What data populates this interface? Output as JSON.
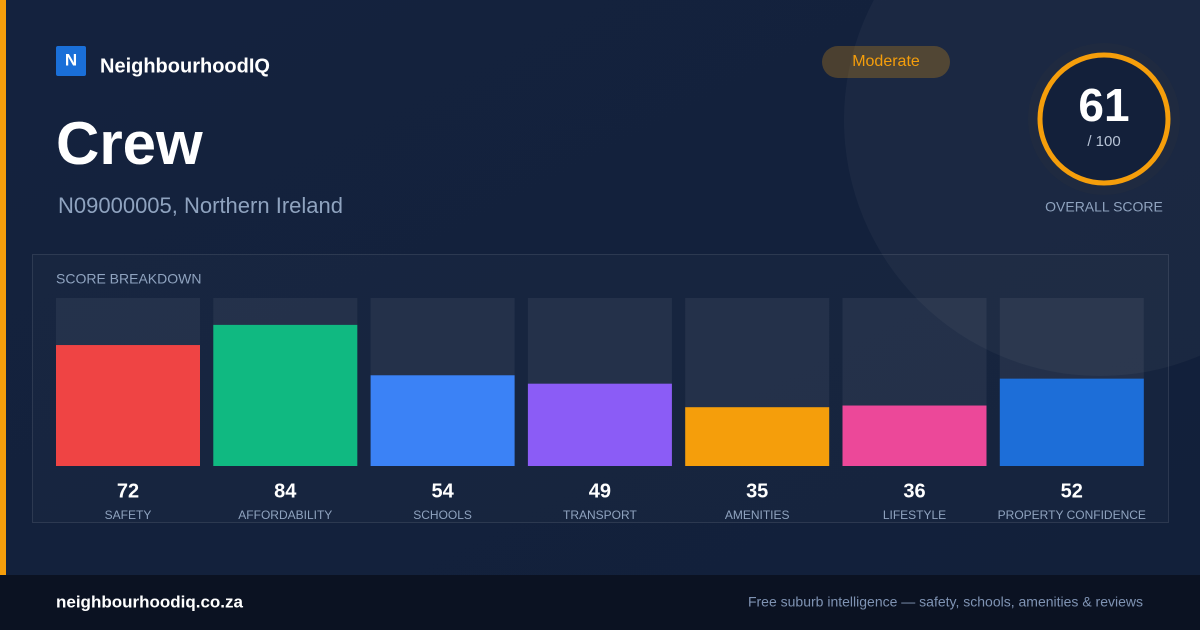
{
  "brand": {
    "logo": "N",
    "name": "NeighbourhoodIQ"
  },
  "badge": "Moderate",
  "title": "Crew",
  "subtitle": "N09000005, Northern Ireland",
  "score": {
    "value": 61,
    "max": {
      "value": 100,
      "label": "/ 100"
    },
    "label": "OVERALL SCORE",
    "color": "#f59e0b"
  },
  "breakdown": {
    "title": "SCORE BREAKDOWN",
    "items": [
      {
        "label": "SAFETY",
        "value": 72,
        "color": "#ef4444"
      },
      {
        "label": "AFFORDABILITY",
        "value": 84,
        "color": "#10b981"
      },
      {
        "label": "SCHOOLS",
        "value": 54,
        "color": "#3b82f6"
      },
      {
        "label": "TRANSPORT",
        "value": 49,
        "color": "#8b5cf6"
      },
      {
        "label": "AMENITIES",
        "value": 35,
        "color": "#f59e0b"
      },
      {
        "label": "LIFESTYLE",
        "value": 36,
        "color": "#ec4899"
      },
      {
        "label": "PROPERTY CONFIDENCE",
        "value": 52,
        "color": "#1d6ed8"
      }
    ]
  },
  "footer": {
    "domain": "neighbourhoodiq.co.za",
    "tagline": "Free suburb intelligence — safety, schools, amenities & reviews"
  }
}
